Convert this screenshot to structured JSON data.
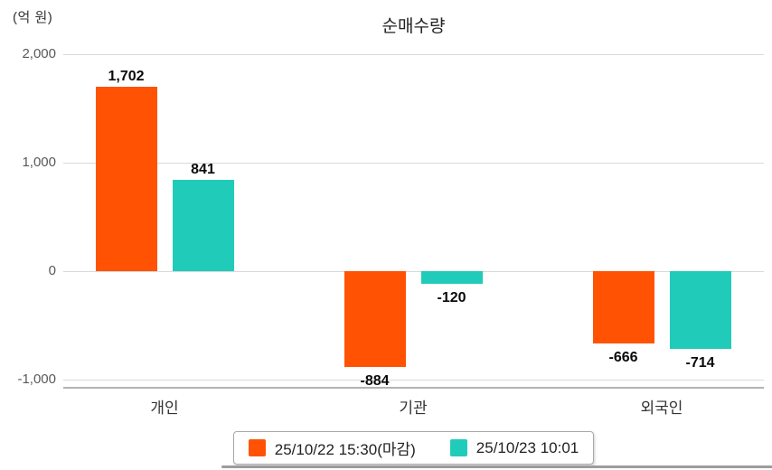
{
  "chart": {
    "unit_label": "(억 원)",
    "colors": {
      "series1": "#ff5303",
      "series2": "#20ccb9",
      "gridline": "#d9d9d9",
      "axis_line": "#b3b3b3",
      "tick_text": "#595959",
      "divider": "#9c9c9c"
    }
  },
  "chart_data": {
    "type": "bar",
    "title": "순매수량",
    "ylabel": "(억 원)",
    "xlabel": "",
    "categories": [
      "개인",
      "기관",
      "외국인"
    ],
    "series": [
      {
        "name": "25/10/22 15:30(마감)",
        "color": "#ff5303",
        "values": [
          1702,
          -884,
          -666
        ],
        "labels": [
          "1,702",
          "-884",
          "-666"
        ]
      },
      {
        "name": "25/10/23 10:01",
        "color": "#20ccb9",
        "values": [
          841,
          -120,
          -714
        ],
        "labels": [
          "841",
          "-120",
          "-714"
        ]
      }
    ],
    "ylim": [
      -1250,
      2000
    ],
    "y_tick_values": [
      2000,
      1000,
      0,
      -1000
    ],
    "y_tick_labels": [
      "2,000",
      "1,000",
      "0",
      "-1,000"
    ],
    "grid": true,
    "legend_position": "bottom"
  }
}
